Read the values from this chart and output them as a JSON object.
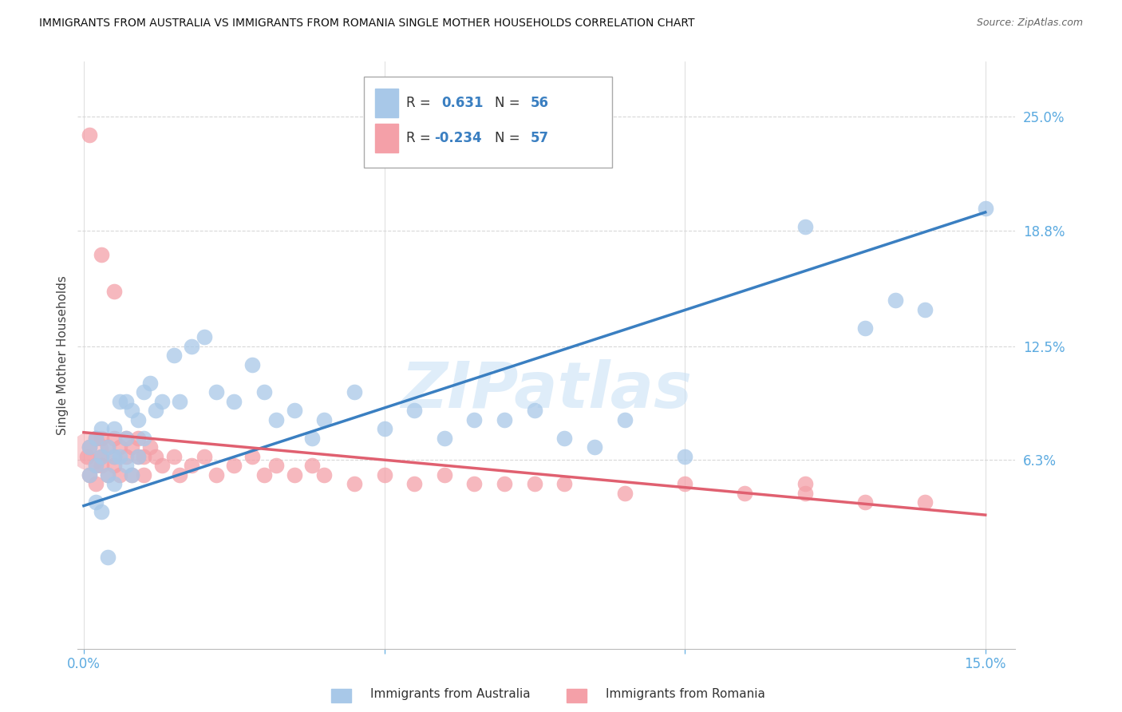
{
  "title": "IMMIGRANTS FROM AUSTRALIA VS IMMIGRANTS FROM ROMANIA SINGLE MOTHER HOUSEHOLDS CORRELATION CHART",
  "source": "Source: ZipAtlas.com",
  "ylabel": "Single Mother Households",
  "xlim": [
    -0.001,
    0.155
  ],
  "ylim": [
    -0.04,
    0.28
  ],
  "y_ticks_right": [
    0.063,
    0.125,
    0.188,
    0.25
  ],
  "y_tick_labels_right": [
    "6.3%",
    "12.5%",
    "18.8%",
    "25.0%"
  ],
  "australia_color": "#a8c8e8",
  "australia_line_color": "#3a7fc1",
  "romania_color": "#f4a0a8",
  "romania_line_color": "#e06070",
  "australia_R": 0.631,
  "australia_N": 56,
  "romania_R": -0.234,
  "romania_N": 57,
  "watermark": "ZIPatlas",
  "background_color": "#ffffff",
  "grid_color": "#d8d8d8",
  "australia_x": [
    0.001,
    0.001,
    0.002,
    0.002,
    0.002,
    0.003,
    0.003,
    0.003,
    0.004,
    0.004,
    0.004,
    0.005,
    0.005,
    0.005,
    0.006,
    0.006,
    0.007,
    0.007,
    0.007,
    0.008,
    0.008,
    0.009,
    0.009,
    0.01,
    0.01,
    0.011,
    0.012,
    0.013,
    0.015,
    0.016,
    0.018,
    0.02,
    0.022,
    0.025,
    0.028,
    0.03,
    0.032,
    0.035,
    0.038,
    0.04,
    0.045,
    0.05,
    0.055,
    0.06,
    0.065,
    0.07,
    0.075,
    0.08,
    0.085,
    0.09,
    0.1,
    0.12,
    0.13,
    0.135,
    0.14,
    0.15
  ],
  "australia_y": [
    0.055,
    0.07,
    0.06,
    0.075,
    0.04,
    0.065,
    0.08,
    0.035,
    0.07,
    0.055,
    0.01,
    0.065,
    0.08,
    0.05,
    0.095,
    0.065,
    0.095,
    0.075,
    0.06,
    0.09,
    0.055,
    0.085,
    0.065,
    0.1,
    0.075,
    0.105,
    0.09,
    0.095,
    0.12,
    0.095,
    0.125,
    0.13,
    0.1,
    0.095,
    0.115,
    0.1,
    0.085,
    0.09,
    0.075,
    0.085,
    0.1,
    0.08,
    0.09,
    0.075,
    0.085,
    0.085,
    0.09,
    0.075,
    0.07,
    0.085,
    0.065,
    0.19,
    0.135,
    0.15,
    0.145,
    0.2
  ],
  "romania_x": [
    0.0005,
    0.001,
    0.001,
    0.002,
    0.002,
    0.002,
    0.003,
    0.003,
    0.003,
    0.004,
    0.004,
    0.005,
    0.005,
    0.005,
    0.006,
    0.006,
    0.007,
    0.007,
    0.008,
    0.008,
    0.009,
    0.009,
    0.01,
    0.01,
    0.011,
    0.012,
    0.013,
    0.015,
    0.016,
    0.018,
    0.02,
    0.022,
    0.025,
    0.028,
    0.03,
    0.032,
    0.035,
    0.038,
    0.04,
    0.045,
    0.05,
    0.055,
    0.06,
    0.065,
    0.07,
    0.075,
    0.08,
    0.09,
    0.1,
    0.11,
    0.12,
    0.13,
    0.14,
    0.001,
    0.003,
    0.005,
    0.12
  ],
  "romania_y": [
    0.065,
    0.07,
    0.055,
    0.075,
    0.06,
    0.05,
    0.065,
    0.075,
    0.06,
    0.07,
    0.055,
    0.065,
    0.075,
    0.06,
    0.07,
    0.055,
    0.065,
    0.075,
    0.07,
    0.055,
    0.065,
    0.075,
    0.065,
    0.055,
    0.07,
    0.065,
    0.06,
    0.065,
    0.055,
    0.06,
    0.065,
    0.055,
    0.06,
    0.065,
    0.055,
    0.06,
    0.055,
    0.06,
    0.055,
    0.05,
    0.055,
    0.05,
    0.055,
    0.05,
    0.05,
    0.05,
    0.05,
    0.045,
    0.05,
    0.045,
    0.045,
    0.04,
    0.04,
    0.24,
    0.175,
    0.155,
    0.05
  ],
  "aus_trend_x": [
    0.0,
    0.15
  ],
  "aus_trend_y": [
    0.038,
    0.198
  ],
  "rom_trend_x": [
    0.0,
    0.15
  ],
  "rom_trend_y": [
    0.078,
    0.033
  ]
}
